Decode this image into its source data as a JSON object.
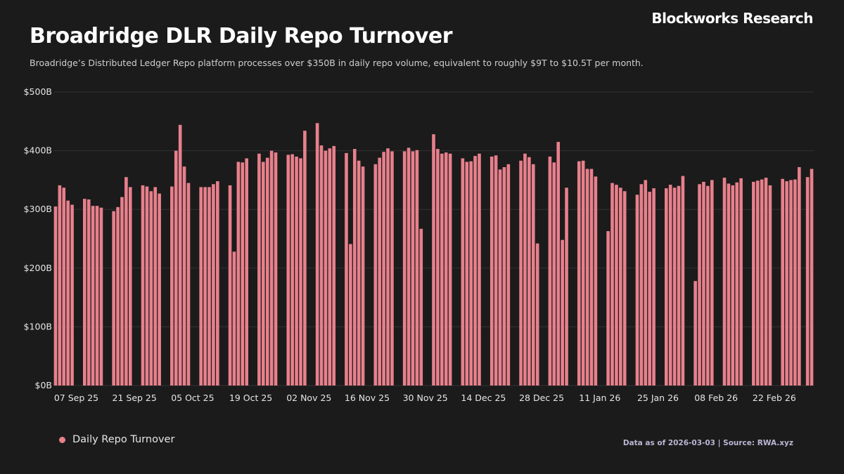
{
  "brand": "Blockworks Research",
  "footnote": "Data as of 2026-03-03 | Source: RWA.xyz",
  "chart_data": {
    "type": "bar",
    "title": "Broadridge DLR Daily Repo Turnover",
    "subtitle": "Broadridge’s Distributed Ledger Repo platform processes over $350B in daily repo volume, equivalent to roughly $9T to $10.5T per month.",
    "series_name": "Daily Repo Turnover",
    "color": "#e8808c",
    "ylim": [
      0,
      500
    ],
    "yticks": [
      0,
      100,
      200,
      300,
      400,
      500
    ],
    "ytick_labels": [
      "$0B",
      "$100B",
      "$200B",
      "$300B",
      "$400B",
      "$500B"
    ],
    "x_start": "2025-09-02",
    "x_end": "2026-03-03",
    "xticks": [
      "2025-09-07",
      "2025-09-21",
      "2025-10-05",
      "2025-10-19",
      "2025-11-02",
      "2025-11-16",
      "2025-11-30",
      "2025-12-14",
      "2025-12-28",
      "2026-01-11",
      "2026-01-25",
      "2026-02-08",
      "2026-02-22"
    ],
    "xtick_labels": [
      "07 Sep 25",
      "21 Sep 25",
      "05 Oct 25",
      "19 Oct 25",
      "02 Nov 25",
      "16 Nov 25",
      "30 Nov 25",
      "14 Dec 25",
      "28 Dec 25",
      "11 Jan 26",
      "25 Jan 26",
      "08 Feb 26",
      "22 Feb 26"
    ],
    "grid": true,
    "legend_position": "bottom-left",
    "points": [
      [
        "2025-09-02",
        305
      ],
      [
        "2025-09-03",
        341
      ],
      [
        "2025-09-04",
        337
      ],
      [
        "2025-09-05",
        315
      ],
      [
        "2025-09-06",
        308
      ],
      [
        "2025-09-09",
        318
      ],
      [
        "2025-09-10",
        317
      ],
      [
        "2025-09-11",
        306
      ],
      [
        "2025-09-12",
        306
      ],
      [
        "2025-09-13",
        303
      ],
      [
        "2025-09-16",
        297
      ],
      [
        "2025-09-17",
        304
      ],
      [
        "2025-09-18",
        321
      ],
      [
        "2025-09-19",
        355
      ],
      [
        "2025-09-20",
        338
      ],
      [
        "2025-09-23",
        341
      ],
      [
        "2025-09-24",
        339
      ],
      [
        "2025-09-25",
        331
      ],
      [
        "2025-09-26",
        338
      ],
      [
        "2025-09-27",
        327
      ],
      [
        "2025-09-30",
        339
      ],
      [
        "2025-10-01",
        400
      ],
      [
        "2025-10-02",
        444
      ],
      [
        "2025-10-03",
        373
      ],
      [
        "2025-10-04",
        345
      ],
      [
        "2025-10-07",
        338
      ],
      [
        "2025-10-08",
        338
      ],
      [
        "2025-10-09",
        338
      ],
      [
        "2025-10-10",
        343
      ],
      [
        "2025-10-11",
        348
      ],
      [
        "2025-10-14",
        341
      ],
      [
        "2025-10-15",
        228
      ],
      [
        "2025-10-16",
        381
      ],
      [
        "2025-10-17",
        380
      ],
      [
        "2025-10-18",
        387
      ],
      [
        "2025-10-21",
        395
      ],
      [
        "2025-10-22",
        381
      ],
      [
        "2025-10-23",
        388
      ],
      [
        "2025-10-24",
        400
      ],
      [
        "2025-10-25",
        397
      ],
      [
        "2025-10-28",
        393
      ],
      [
        "2025-10-29",
        394
      ],
      [
        "2025-10-30",
        390
      ],
      [
        "2025-10-31",
        387
      ],
      [
        "2025-11-01",
        434
      ],
      [
        "2025-11-04",
        447
      ],
      [
        "2025-11-05",
        409
      ],
      [
        "2025-11-06",
        400
      ],
      [
        "2025-11-07",
        404
      ],
      [
        "2025-11-08",
        408
      ],
      [
        "2025-11-11",
        396
      ],
      [
        "2025-11-12",
        241
      ],
      [
        "2025-11-13",
        403
      ],
      [
        "2025-11-14",
        383
      ],
      [
        "2025-11-15",
        373
      ],
      [
        "2025-11-18",
        377
      ],
      [
        "2025-11-19",
        388
      ],
      [
        "2025-11-20",
        398
      ],
      [
        "2025-11-21",
        404
      ],
      [
        "2025-11-22",
        399
      ],
      [
        "2025-11-25",
        399
      ],
      [
        "2025-11-26",
        405
      ],
      [
        "2025-11-27",
        399
      ],
      [
        "2025-11-28",
        401
      ],
      [
        "2025-11-29",
        267
      ],
      [
        "2025-12-02",
        428
      ],
      [
        "2025-12-03",
        403
      ],
      [
        "2025-12-04",
        395
      ],
      [
        "2025-12-05",
        397
      ],
      [
        "2025-12-06",
        395
      ],
      [
        "2025-12-09",
        387
      ],
      [
        "2025-12-10",
        381
      ],
      [
        "2025-12-11",
        382
      ],
      [
        "2025-12-12",
        391
      ],
      [
        "2025-12-13",
        395
      ],
      [
        "2025-12-16",
        390
      ],
      [
        "2025-12-17",
        392
      ],
      [
        "2025-12-18",
        368
      ],
      [
        "2025-12-19",
        372
      ],
      [
        "2025-12-20",
        377
      ],
      [
        "2025-12-23",
        383
      ],
      [
        "2025-12-24",
        395
      ],
      [
        "2025-12-25",
        389
      ],
      [
        "2025-12-26",
        377
      ],
      [
        "2025-12-27",
        242
      ],
      [
        "2025-12-30",
        390
      ],
      [
        "2025-12-31",
        380
      ],
      [
        "2026-01-01",
        415
      ],
      [
        "2026-01-02",
        248
      ],
      [
        "2026-01-03",
        337
      ],
      [
        "2026-01-06",
        382
      ],
      [
        "2026-01-07",
        383
      ],
      [
        "2026-01-08",
        369
      ],
      [
        "2026-01-09",
        369
      ],
      [
        "2026-01-10",
        356
      ],
      [
        "2026-01-13",
        263
      ],
      [
        "2026-01-14",
        345
      ],
      [
        "2026-01-15",
        342
      ],
      [
        "2026-01-16",
        337
      ],
      [
        "2026-01-17",
        331
      ],
      [
        "2026-01-20",
        325
      ],
      [
        "2026-01-21",
        343
      ],
      [
        "2026-01-22",
        350
      ],
      [
        "2026-01-23",
        330
      ],
      [
        "2026-01-24",
        336
      ],
      [
        "2026-01-27",
        336
      ],
      [
        "2026-01-28",
        342
      ],
      [
        "2026-01-29",
        337
      ],
      [
        "2026-01-30",
        340
      ],
      [
        "2026-01-31",
        357
      ],
      [
        "2026-02-03",
        178
      ],
      [
        "2026-02-04",
        343
      ],
      [
        "2026-02-05",
        347
      ],
      [
        "2026-02-06",
        340
      ],
      [
        "2026-02-07",
        350
      ],
      [
        "2026-02-10",
        354
      ],
      [
        "2026-02-11",
        344
      ],
      [
        "2026-02-12",
        341
      ],
      [
        "2026-02-13",
        346
      ],
      [
        "2026-02-14",
        353
      ],
      [
        "2026-02-17",
        347
      ],
      [
        "2026-02-18",
        349
      ],
      [
        "2026-02-19",
        351
      ],
      [
        "2026-02-20",
        354
      ],
      [
        "2026-02-21",
        341
      ],
      [
        "2026-02-24",
        352
      ],
      [
        "2026-02-25",
        348
      ],
      [
        "2026-02-26",
        350
      ],
      [
        "2026-02-27",
        351
      ],
      [
        "2026-02-28",
        372
      ],
      [
        "2026-03-02",
        355
      ],
      [
        "2026-03-03",
        369
      ]
    ]
  }
}
